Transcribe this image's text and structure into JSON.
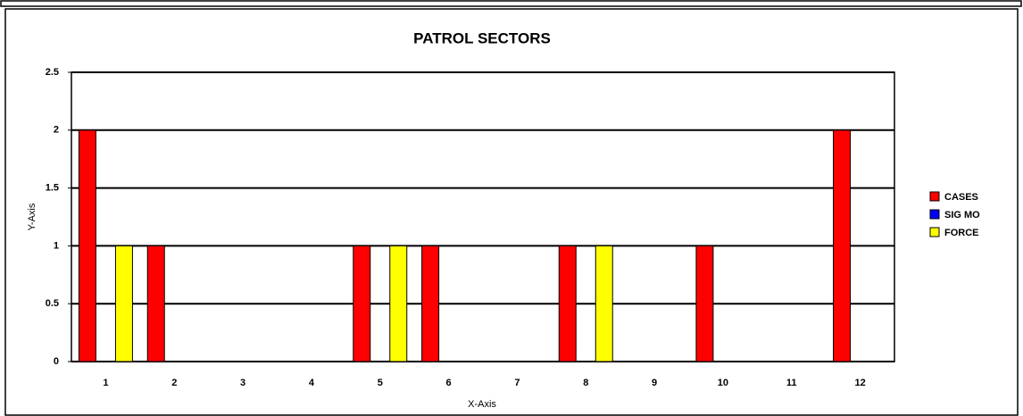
{
  "chart_data": {
    "type": "bar",
    "title": "PATROL SECTORS",
    "x_label": "X-Axis",
    "y_label": "Y-Axis",
    "categories": [
      "1",
      "2",
      "3",
      "4",
      "5",
      "6",
      "7",
      "8",
      "9",
      "10",
      "11",
      "12"
    ],
    "series": [
      {
        "name": "CASES",
        "color": "#ff0000",
        "values": [
          2,
          1,
          0,
          0,
          1,
          1,
          0,
          1,
          0,
          1,
          0,
          2
        ]
      },
      {
        "name": "SIG MO",
        "color": "#0000ff",
        "values": [
          0,
          0,
          0,
          0,
          0,
          0,
          0,
          0,
          0,
          0,
          0,
          0
        ]
      },
      {
        "name": "FORCE",
        "color": "#ffff00",
        "values": [
          1,
          0,
          0,
          0,
          1,
          0,
          0,
          1,
          0,
          0,
          0,
          0
        ]
      }
    ],
    "ylim": [
      0,
      2.5
    ],
    "yticks": [
      0,
      0.5,
      1,
      1.5,
      2,
      2.5
    ],
    "grid": true,
    "legend": "right"
  }
}
